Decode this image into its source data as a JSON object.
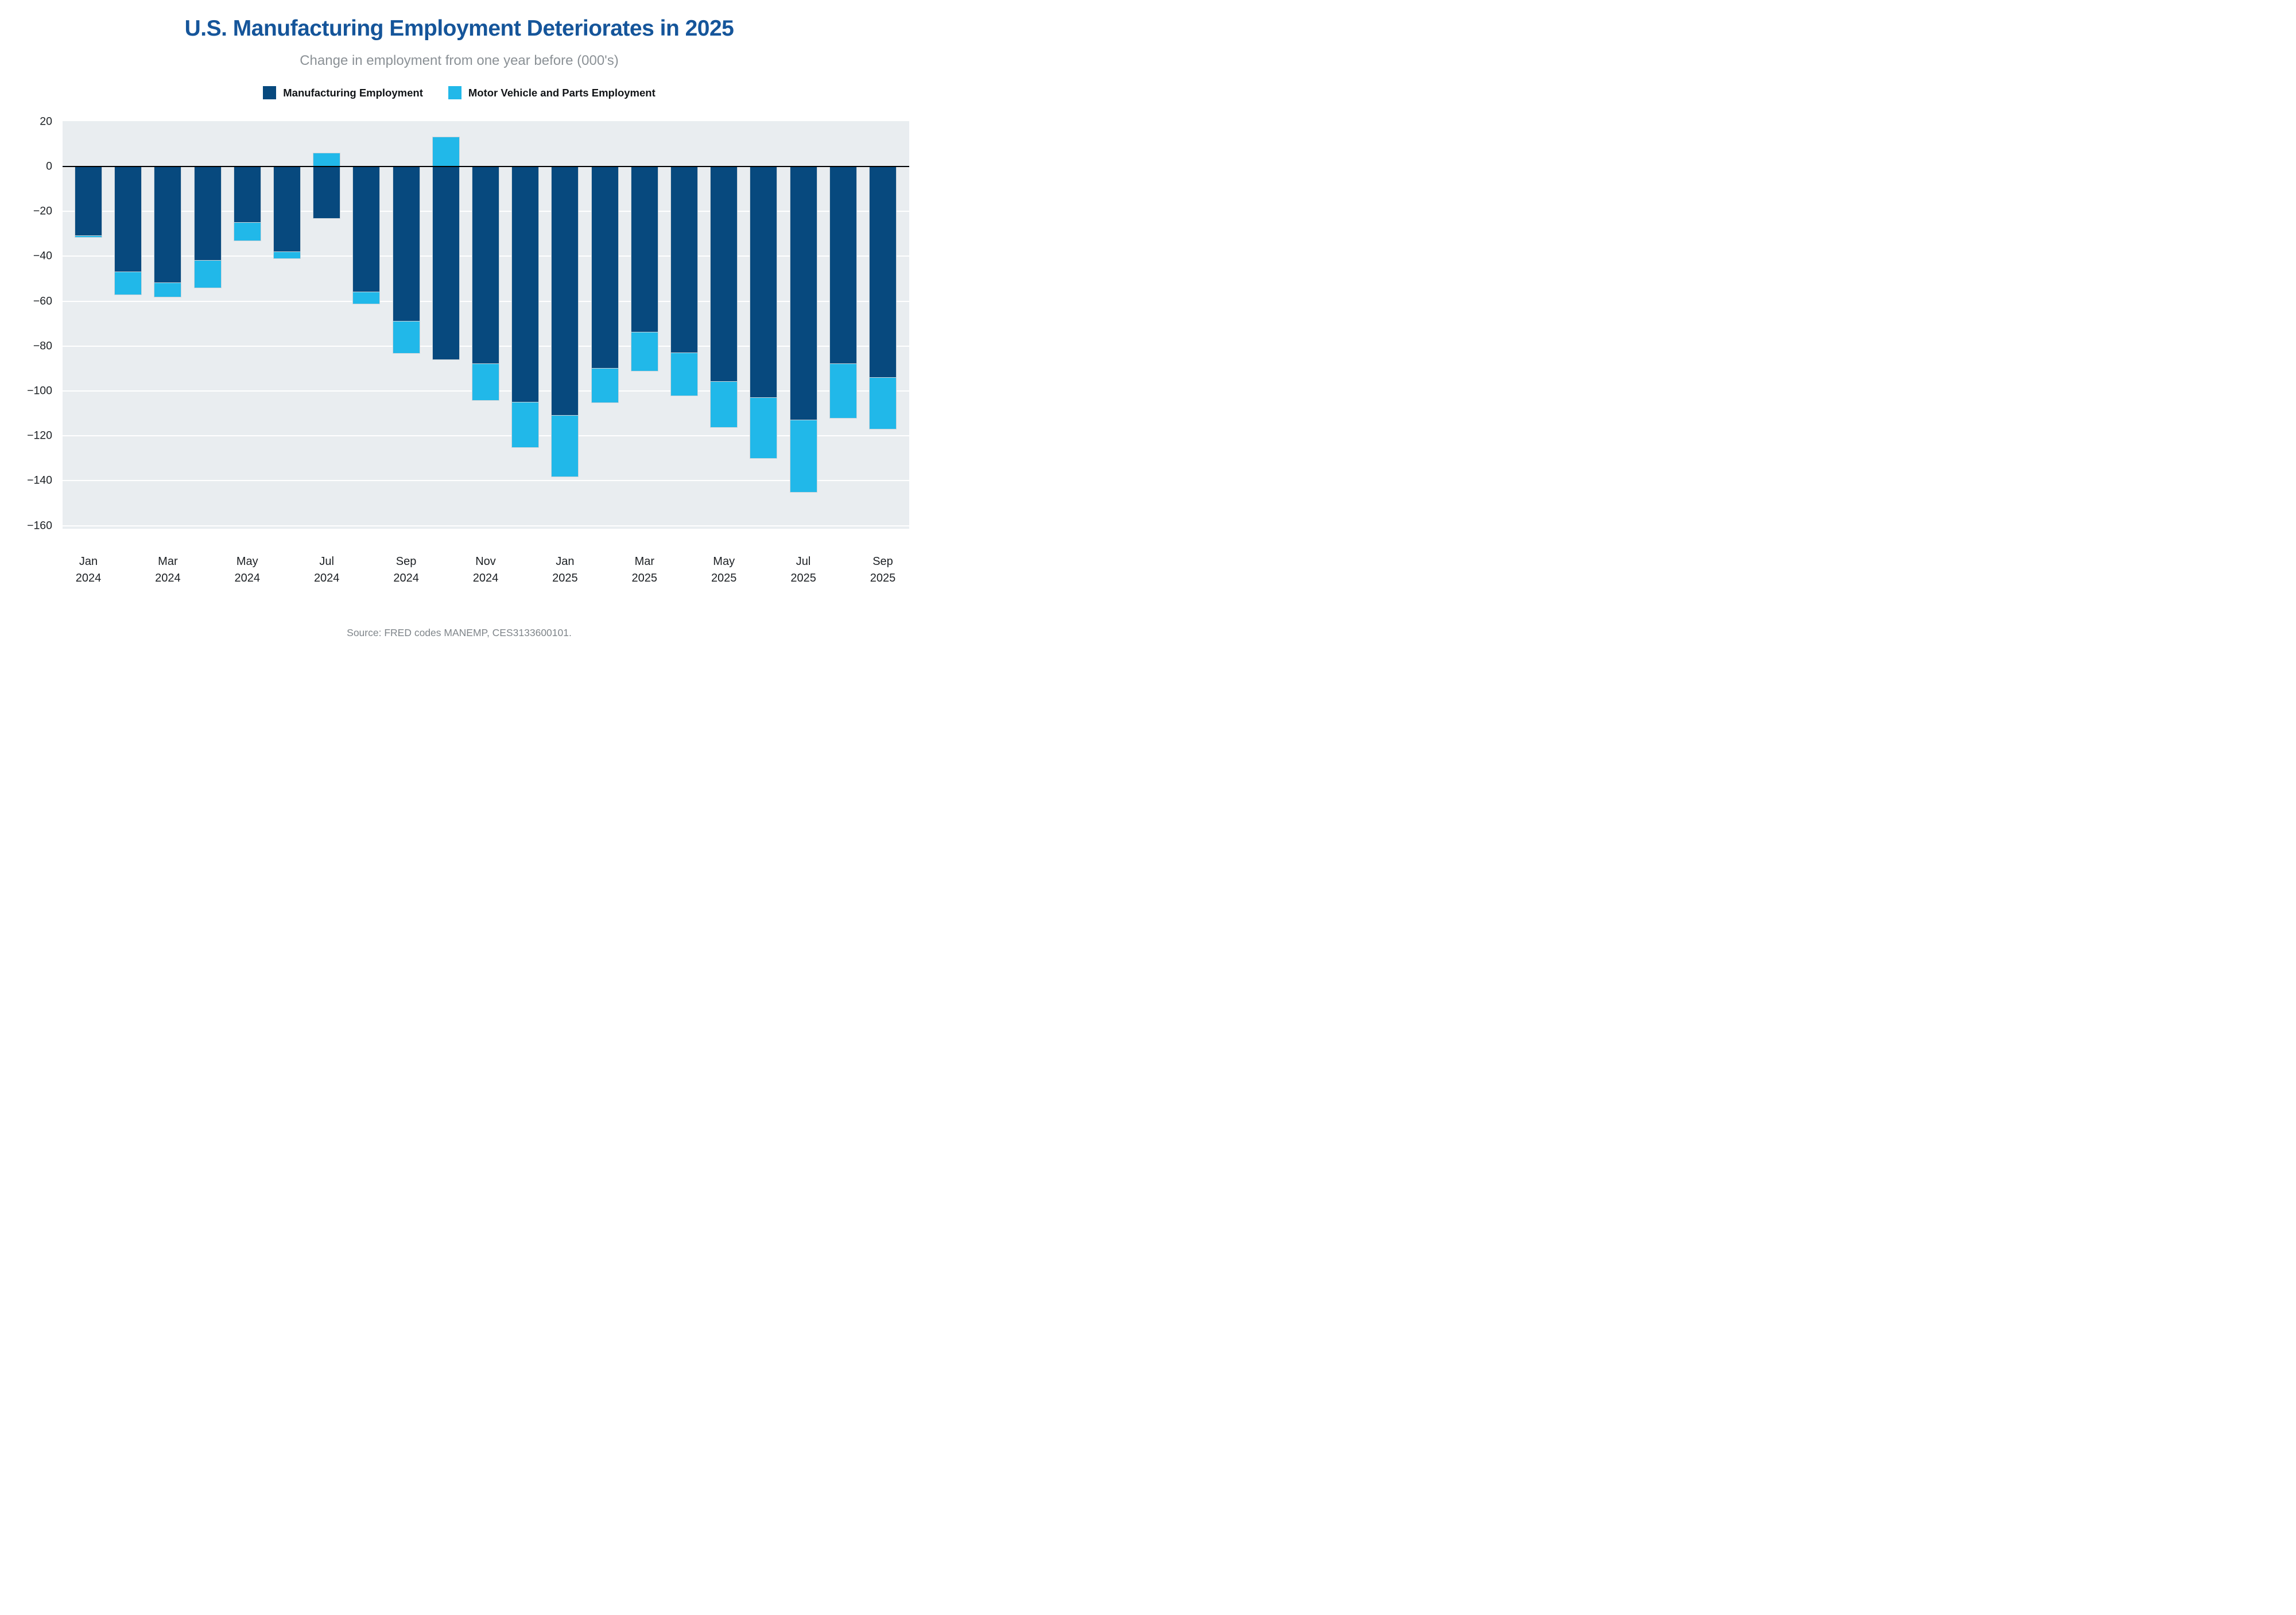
{
  "header": {
    "title": "U.S. Manufacturing Employment Deteriorates in 2025",
    "subtitle": "Change in employment from one year before (000's)"
  },
  "legend": {
    "items": [
      {
        "label": "Manufacturing Employment",
        "color": "#07497e"
      },
      {
        "label": "Motor Vehicle and Parts Employment",
        "color": "#21b8e9"
      }
    ]
  },
  "source": "Source: FRED codes MANEMP, CES3133600101.",
  "colors": {
    "title_blue": "#15559a",
    "navy_bar": "#07497e",
    "cyan_bar": "#21b8e9",
    "plot_background": "#e9edf0",
    "gridline": "#ffffff",
    "zero_line": "#000000",
    "subtitle_gray": "#8b9196",
    "source_gray": "#7f858a"
  },
  "chart_data": {
    "type": "bar",
    "stacked": true,
    "title": "U.S. Manufacturing Employment Deteriorates in 2025",
    "subtitle": "Change in employment from one year before (000's)",
    "xlabel": "",
    "ylabel": "",
    "ylim": [
      -160,
      20
    ],
    "ytick_step": 20,
    "ytick_values": [
      20,
      0,
      -20,
      -40,
      -60,
      -80,
      -100,
      -120,
      -140,
      -160
    ],
    "grid": "horizontal-white-on-gray",
    "legend_position": "top-center",
    "categories": [
      "Jan 2024",
      "Feb 2024",
      "Mar 2024",
      "Apr 2024",
      "May 2024",
      "Jun 2024",
      "Jul 2024",
      "Aug 2024",
      "Sep 2024",
      "Oct 2024",
      "Nov 2024",
      "Dec 2024",
      "Jan 2025",
      "Feb 2025",
      "Mar 2025",
      "Apr 2025",
      "May 2025",
      "Jun 2025",
      "Jul 2025",
      "Aug 2025",
      "Sep 2025"
    ],
    "x_tick_label_indices": [
      0,
      2,
      4,
      6,
      8,
      10,
      12,
      14,
      16,
      18,
      20
    ],
    "series": [
      {
        "name": "Manufacturing Employment",
        "color": "#07497e",
        "values": [
          -31,
          -47,
          -52,
          -42,
          -25,
          -38,
          -23,
          -56,
          -69,
          -86,
          -88,
          -105,
          -111,
          -90,
          -74,
          -83,
          -96,
          -103,
          -113,
          -88,
          -94
        ]
      },
      {
        "name": "Motor Vehicle and Parts Employment",
        "color": "#21b8e9",
        "values": [
          -0.5,
          -10,
          -6,
          -12,
          -8,
          -3,
          6,
          -5,
          -14,
          13,
          -16,
          -20,
          -27,
          -15,
          -17,
          -19,
          -20,
          -27,
          -32,
          -24,
          -23
        ]
      }
    ],
    "note": "Stacked bars: the motor-vehicle segment extends below the navy manufacturing segment when negative, and is drawn above the zero line when positive (Jul 2024: +6, Oct 2024: +13). Bar bottoms: -31.5,-57,-58,-54,-33,-41,-23,-61,-83,-86,-104,-125,-138,-105,-91,-102,-116,-130,-145,-112,-117."
  }
}
